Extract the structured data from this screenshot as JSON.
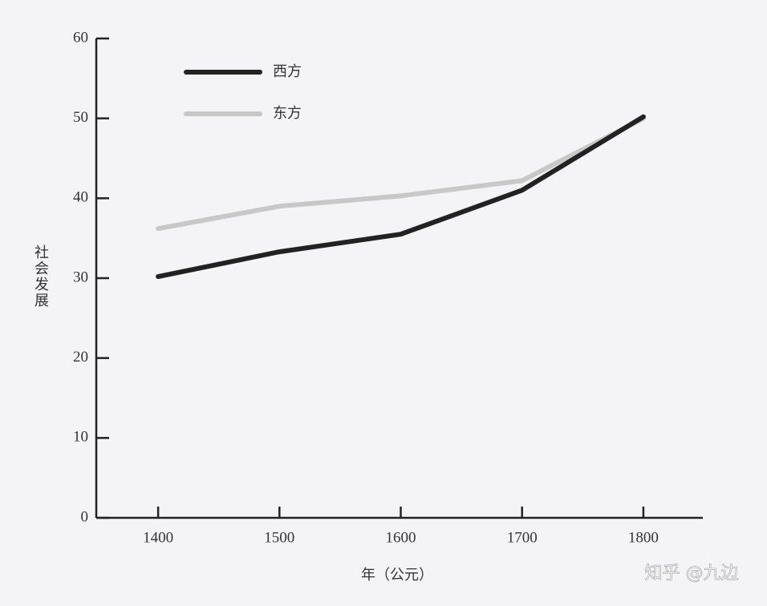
{
  "chart_data": {
    "type": "line",
    "x_label": "年（公元）",
    "y_label": "社会发展",
    "watermark": "知乎 @九边",
    "x": [
      1400,
      1500,
      1600,
      1700,
      1800
    ],
    "series": [
      {
        "name": "西方",
        "color": "#222222",
        "values": [
          30.2,
          33.3,
          35.5,
          41,
          50.2
        ]
      },
      {
        "name": "东方",
        "color": "#c8c8c8",
        "values": [
          36.2,
          39,
          40.3,
          42.2,
          50
        ]
      }
    ],
    "xlim": [
      1349,
      1849
    ],
    "xticks": [
      1400,
      1500,
      1600,
      1700,
      1800
    ],
    "ylim": [
      0,
      60
    ],
    "yticks": [
      0,
      10,
      20,
      30,
      40,
      50,
      60
    ]
  }
}
